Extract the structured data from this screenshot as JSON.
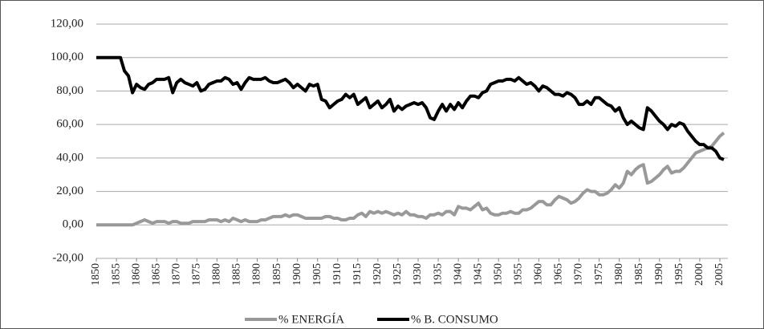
{
  "chart_data": {
    "type": "line",
    "x": [
      1850,
      1851,
      1852,
      1853,
      1854,
      1855,
      1856,
      1857,
      1858,
      1859,
      1860,
      1861,
      1862,
      1863,
      1864,
      1865,
      1866,
      1867,
      1868,
      1869,
      1870,
      1871,
      1872,
      1873,
      1874,
      1875,
      1876,
      1877,
      1878,
      1879,
      1880,
      1881,
      1882,
      1883,
      1884,
      1885,
      1886,
      1887,
      1888,
      1889,
      1890,
      1891,
      1892,
      1893,
      1894,
      1895,
      1896,
      1897,
      1898,
      1899,
      1900,
      1901,
      1902,
      1903,
      1904,
      1905,
      1906,
      1907,
      1908,
      1909,
      1910,
      1911,
      1912,
      1913,
      1914,
      1915,
      1916,
      1917,
      1918,
      1919,
      1920,
      1921,
      1922,
      1923,
      1924,
      1925,
      1926,
      1927,
      1928,
      1929,
      1930,
      1931,
      1932,
      1933,
      1934,
      1935,
      1936,
      1937,
      1938,
      1939,
      1940,
      1941,
      1942,
      1943,
      1944,
      1945,
      1946,
      1947,
      1948,
      1949,
      1950,
      1951,
      1952,
      1953,
      1954,
      1955,
      1956,
      1957,
      1958,
      1959,
      1960,
      1961,
      1962,
      1963,
      1964,
      1965,
      1966,
      1967,
      1968,
      1969,
      1970,
      1971,
      1972,
      1973,
      1974,
      1975,
      1976,
      1977,
      1978,
      1979,
      1980,
      1981,
      1982,
      1983,
      1984,
      1985,
      1986,
      1987,
      1988,
      1989,
      1990,
      1991,
      1992,
      1993,
      1994,
      1995,
      1996,
      1997,
      1998,
      1999,
      2000,
      2001,
      2002,
      2003,
      2004,
      2005,
      2006
    ],
    "series": [
      {
        "name": "% ENERGÍA",
        "color": "#999999",
        "values": [
          0,
          0,
          0,
          0,
          0,
          0,
          0,
          0,
          0,
          0,
          1,
          2,
          3,
          2,
          1,
          2,
          2,
          2,
          1,
          2,
          2,
          1,
          1,
          1,
          2,
          2,
          2,
          2,
          3,
          3,
          3,
          2,
          3,
          2,
          4,
          3,
          2,
          3,
          2,
          2,
          2,
          3,
          3,
          4,
          5,
          5,
          5,
          6,
          5,
          6,
          6,
          5,
          4,
          4,
          4,
          4,
          4,
          5,
          5,
          4,
          4,
          3,
          3,
          4,
          4,
          6,
          7,
          5,
          8,
          7,
          8,
          7,
          8,
          7,
          6,
          7,
          6,
          8,
          6,
          6,
          5,
          5,
          4,
          6,
          6,
          7,
          6,
          8,
          8,
          6,
          11,
          10,
          10,
          9,
          11,
          13,
          9,
          10,
          7,
          6,
          6,
          7,
          7,
          8,
          7,
          7,
          9,
          9,
          10,
          12,
          14,
          14,
          12,
          12,
          15,
          17,
          16,
          15,
          13,
          14,
          16,
          19,
          21,
          20,
          20,
          18,
          18,
          19,
          21,
          24,
          22,
          25,
          32,
          30,
          33,
          35,
          36,
          25,
          26,
          28,
          30,
          33,
          35,
          31,
          32,
          32,
          34,
          37,
          40,
          43,
          44,
          45,
          46,
          47,
          50,
          53,
          55
        ]
      },
      {
        "name": "% B. CONSUMO",
        "color": "#000000",
        "values": [
          100,
          100,
          100,
          100,
          100,
          100,
          100,
          92,
          89,
          79,
          84,
          82,
          81,
          84,
          85,
          87,
          87,
          87,
          88,
          79,
          85,
          87,
          85,
          84,
          83,
          85,
          80,
          81,
          84,
          85,
          86,
          86,
          88,
          87,
          84,
          85,
          81,
          85,
          88,
          87,
          87,
          87,
          88,
          86,
          85,
          85,
          86,
          87,
          85,
          82,
          84,
          82,
          80,
          84,
          83,
          84,
          75,
          74,
          70,
          72,
          74,
          75,
          78,
          76,
          78,
          72,
          74,
          76,
          70,
          72,
          74,
          70,
          72,
          75,
          68,
          71,
          69,
          71,
          72,
          73,
          72,
          73,
          70,
          64,
          63,
          68,
          72,
          68,
          72,
          69,
          73,
          70,
          74,
          77,
          77,
          76,
          79,
          80,
          84,
          85,
          86,
          86,
          87,
          87,
          86,
          88,
          86,
          84,
          85,
          83,
          80,
          83,
          82,
          80,
          78,
          78,
          77,
          79,
          78,
          76,
          72,
          72,
          74,
          72,
          76,
          76,
          74,
          72,
          71,
          68,
          70,
          64,
          60,
          62,
          60,
          58,
          57,
          70,
          68,
          65,
          62,
          60,
          57,
          60,
          59,
          61,
          60,
          56,
          53,
          50,
          48,
          48,
          46,
          46,
          44,
          40,
          39
        ]
      }
    ],
    "xlim": [
      1850,
      2007
    ],
    "xticks": [
      1850,
      1855,
      1860,
      1865,
      1870,
      1875,
      1880,
      1885,
      1890,
      1895,
      1900,
      1905,
      1910,
      1915,
      1920,
      1925,
      1930,
      1935,
      1940,
      1945,
      1950,
      1955,
      1960,
      1965,
      1970,
      1975,
      1980,
      1985,
      1990,
      1995,
      2000,
      2005
    ],
    "ylim": [
      -20,
      120
    ],
    "yticks": [
      {
        "value": -20,
        "label": "-20,00"
      },
      {
        "value": 0,
        "label": "0,00"
      },
      {
        "value": 20,
        "label": "20,00"
      },
      {
        "value": 40,
        "label": "40,00"
      },
      {
        "value": 60,
        "label": "60,00"
      },
      {
        "value": 80,
        "label": "80,00"
      },
      {
        "value": 100,
        "label": "100,00"
      },
      {
        "value": 120,
        "label": "120,00"
      }
    ],
    "grid": true,
    "legend": "bottom"
  }
}
